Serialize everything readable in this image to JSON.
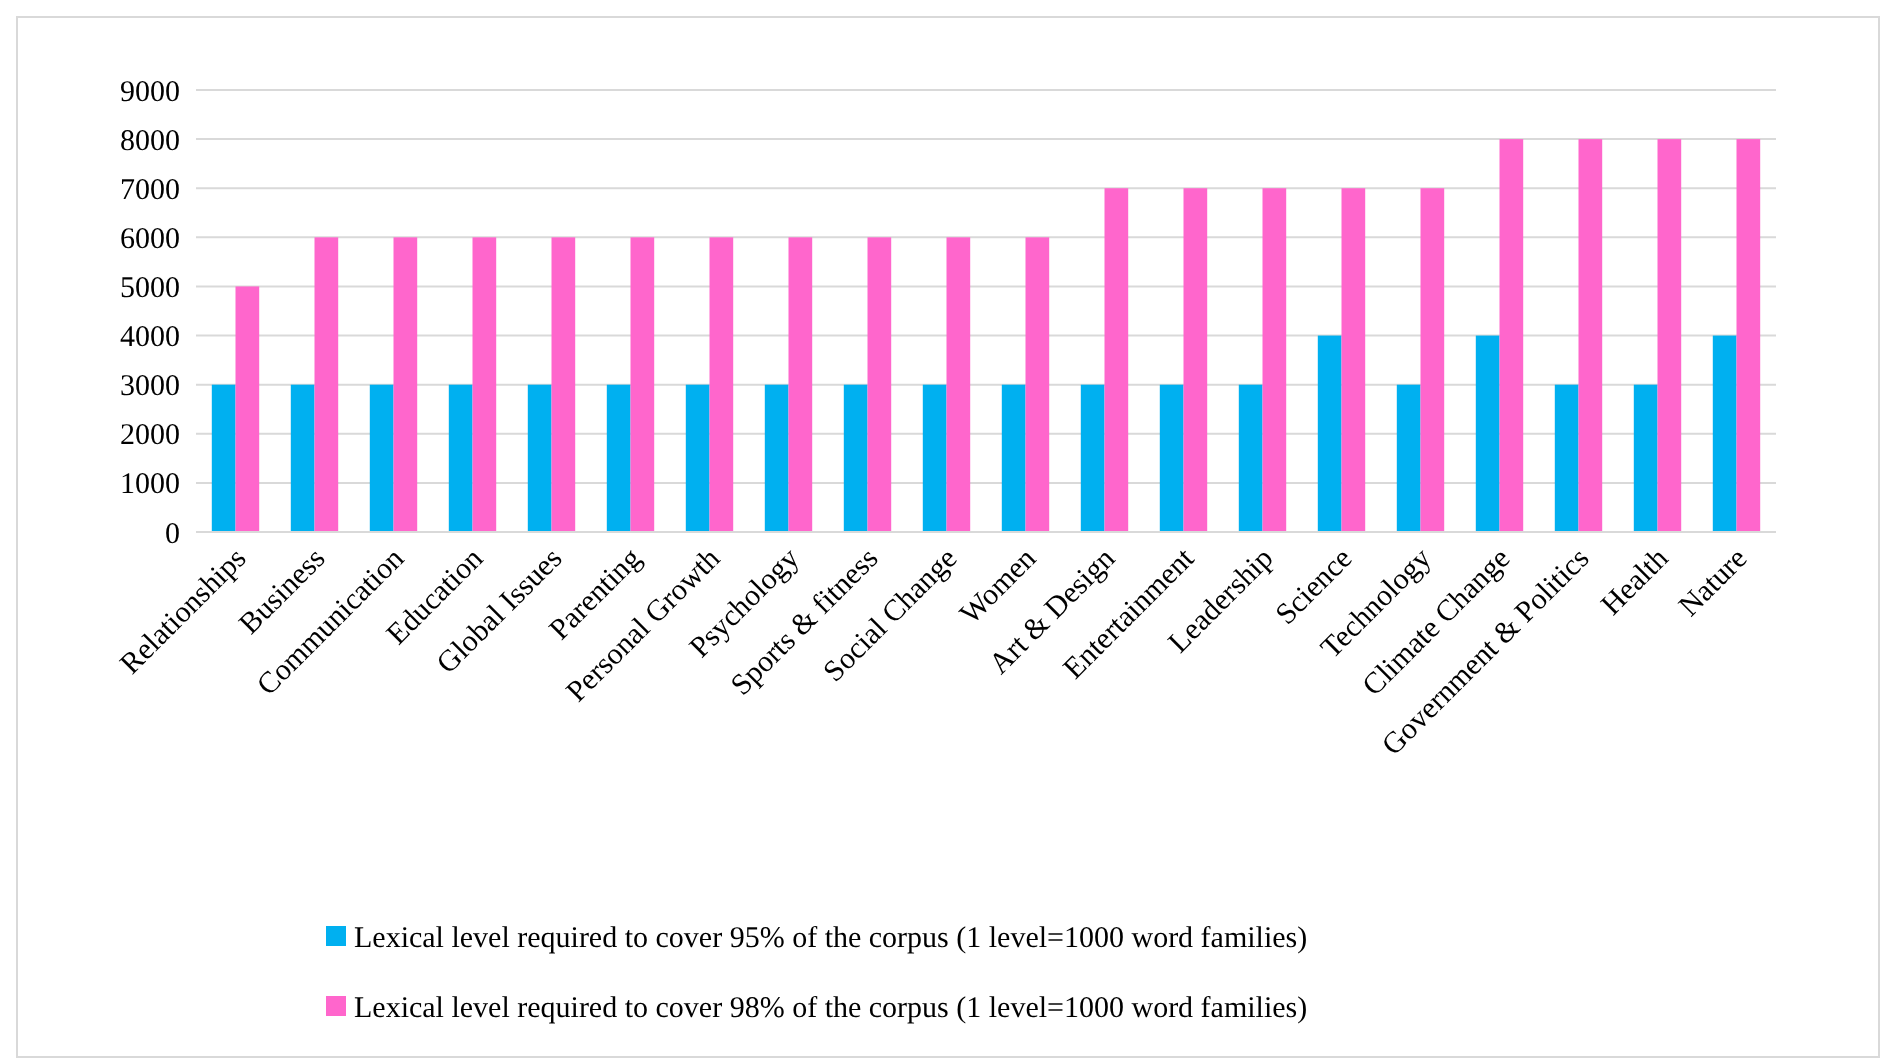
{
  "chart_data": {
    "type": "bar",
    "categories": [
      "Relationships",
      "Business",
      "Communication",
      "Education",
      "Global Issues",
      "Parenting",
      "Personal Growth",
      "Psychology",
      "Sports & fitness",
      "Social Change",
      "Women",
      "Art & Design",
      "Entertainment",
      "Leadership",
      "Science",
      "Technology",
      "Climate Change",
      "Government & Politics",
      "Health",
      "Nature"
    ],
    "series": [
      {
        "name": "Lexical level required to cover 95% of the corpus (1 level=1000 word families)",
        "color": "#00b0f0",
        "values": [
          3000,
          3000,
          3000,
          3000,
          3000,
          3000,
          3000,
          3000,
          3000,
          3000,
          3000,
          3000,
          3000,
          3000,
          4000,
          3000,
          4000,
          3000,
          3000,
          4000
        ]
      },
      {
        "name": "Lexical level required to cover 98% of the corpus (1 level=1000 word families)",
        "color": "#ff66cc",
        "values": [
          5000,
          6000,
          6000,
          6000,
          6000,
          6000,
          6000,
          6000,
          6000,
          6000,
          6000,
          7000,
          7000,
          7000,
          7000,
          7000,
          8000,
          8000,
          8000,
          8000
        ]
      }
    ],
    "ylim": [
      0,
      9000
    ],
    "yticks": [
      0,
      1000,
      2000,
      3000,
      4000,
      5000,
      6000,
      7000,
      8000,
      9000
    ],
    "grid": "y",
    "legend": "bottom"
  }
}
